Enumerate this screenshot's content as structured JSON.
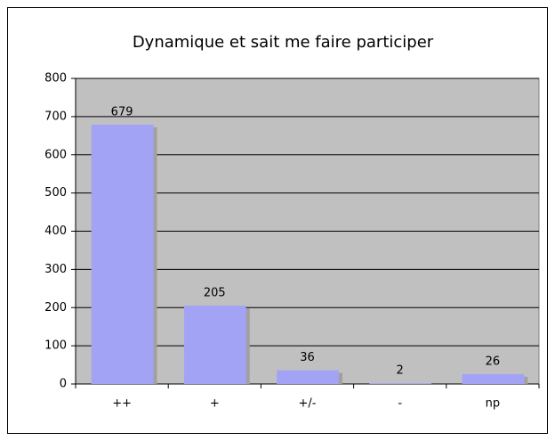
{
  "chart_data": {
    "type": "bar",
    "title": "Dynamique et sait me faire participer",
    "categories": [
      "++",
      "+",
      "+/-",
      "-",
      "np"
    ],
    "values": [
      679,
      205,
      36,
      2,
      26
    ],
    "color": "#a3a3f5",
    "ylim": [
      0,
      800
    ],
    "yticks": [
      0,
      100,
      200,
      300,
      400,
      500,
      600,
      700,
      800
    ],
    "grid": true
  }
}
